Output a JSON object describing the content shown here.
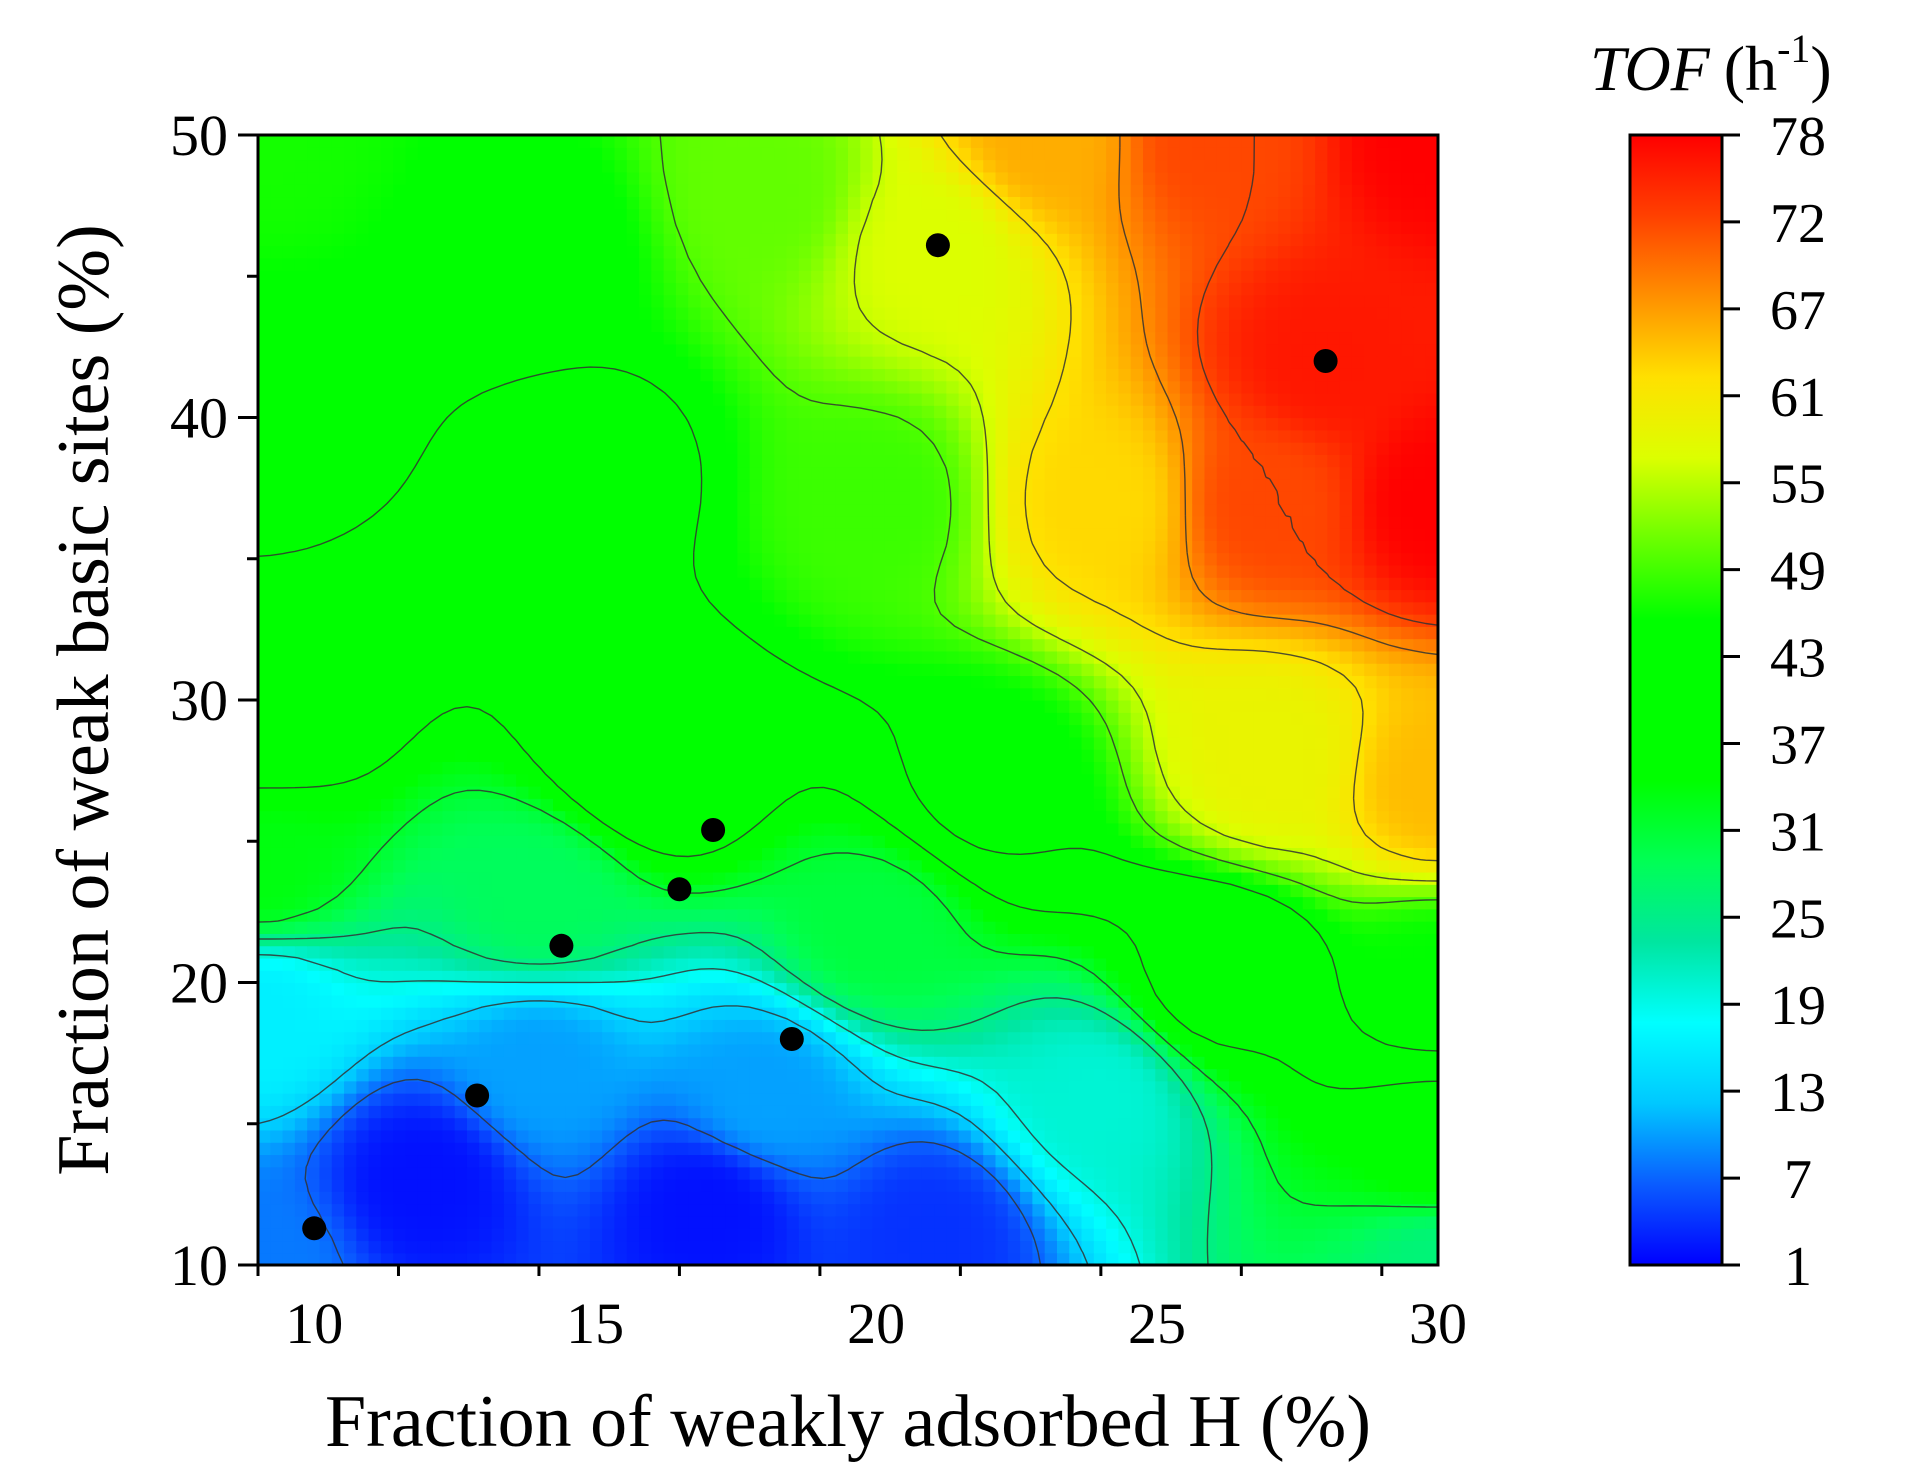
{
  "chart_data": {
    "type": "contour",
    "xlabel": "Fraction of weakly adsorbed H (%)",
    "ylabel": "Fraction of weak basic sites (%)",
    "xlim": [
      9,
      30
    ],
    "ylim": [
      10,
      50
    ],
    "x_ticks": [
      10,
      15,
      20,
      25,
      30
    ],
    "y_ticks": [
      10,
      20,
      30,
      40,
      50
    ],
    "colorbar": {
      "title_italic": "TOF",
      "title_unit": "(h",
      "title_sup": "-1",
      "title_close": ")",
      "min": 1,
      "max": 78,
      "tick_labels": [
        "1",
        "7",
        "13",
        "19",
        "25",
        "31",
        "37",
        "43",
        "49",
        "55",
        "61",
        "67",
        "72",
        "78"
      ],
      "colors": [
        "#0000ff",
        "#0a5cff",
        "#00c8ff",
        "#00ffff",
        "#00e6a0",
        "#00ff55",
        "#00ff00",
        "#00ff00",
        "#00ff00",
        "#6cff00",
        "#dcff00",
        "#ffe000",
        "#ff9000",
        "#ff4000",
        "#ff0000"
      ]
    },
    "grid": false,
    "points": [
      {
        "x": 10.0,
        "y": 11.3
      },
      {
        "x": 12.9,
        "y": 16.0
      },
      {
        "x": 14.4,
        "y": 21.3
      },
      {
        "x": 16.5,
        "y": 23.3
      },
      {
        "x": 17.1,
        "y": 25.4
      },
      {
        "x": 18.5,
        "y": 18.0
      },
      {
        "x": 21.1,
        "y": 46.1
      },
      {
        "x": 28.0,
        "y": 42.0
      }
    ],
    "contour_levels": [
      7,
      13,
      19,
      25,
      31,
      37,
      43,
      49,
      55,
      61,
      67,
      72
    ],
    "surface_anchors": [
      {
        "x": 9,
        "y": 10,
        "tof": 8
      },
      {
        "x": 12,
        "y": 13,
        "tof": 2
      },
      {
        "x": 17,
        "y": 12,
        "tof": 2
      },
      {
        "x": 21,
        "y": 11,
        "tof": 4
      },
      {
        "x": 30,
        "y": 10,
        "tof": 26
      },
      {
        "x": 9,
        "y": 19,
        "tof": 16
      },
      {
        "x": 14,
        "y": 17,
        "tof": 10
      },
      {
        "x": 18,
        "y": 16,
        "tof": 10
      },
      {
        "x": 24,
        "y": 16,
        "tof": 20
      },
      {
        "x": 30,
        "y": 14,
        "tof": 35
      },
      {
        "x": 9,
        "y": 24,
        "tof": 33
      },
      {
        "x": 14,
        "y": 23,
        "tof": 28
      },
      {
        "x": 20,
        "y": 22,
        "tof": 30
      },
      {
        "x": 26,
        "y": 20,
        "tof": 38
      },
      {
        "x": 30,
        "y": 20,
        "tof": 45
      },
      {
        "x": 9,
        "y": 30,
        "tof": 43
      },
      {
        "x": 16,
        "y": 28,
        "tof": 42
      },
      {
        "x": 22,
        "y": 27,
        "tof": 44
      },
      {
        "x": 27,
        "y": 28,
        "tof": 58
      },
      {
        "x": 30,
        "y": 27,
        "tof": 64
      },
      {
        "x": 9,
        "y": 40,
        "tof": 44
      },
      {
        "x": 15,
        "y": 38,
        "tof": 42
      },
      {
        "x": 20,
        "y": 37,
        "tof": 48
      },
      {
        "x": 24,
        "y": 37,
        "tof": 62
      },
      {
        "x": 27,
        "y": 37,
        "tof": 72
      },
      {
        "x": 30,
        "y": 37,
        "tof": 78
      },
      {
        "x": 9,
        "y": 50,
        "tof": 46
      },
      {
        "x": 14,
        "y": 46,
        "tof": 44
      },
      {
        "x": 18,
        "y": 48,
        "tof": 50
      },
      {
        "x": 21,
        "y": 46,
        "tof": 56
      },
      {
        "x": 23,
        "y": 50,
        "tof": 65
      },
      {
        "x": 26,
        "y": 50,
        "tof": 72
      },
      {
        "x": 28,
        "y": 42,
        "tof": 76
      },
      {
        "x": 30,
        "y": 50,
        "tof": 78
      }
    ]
  }
}
